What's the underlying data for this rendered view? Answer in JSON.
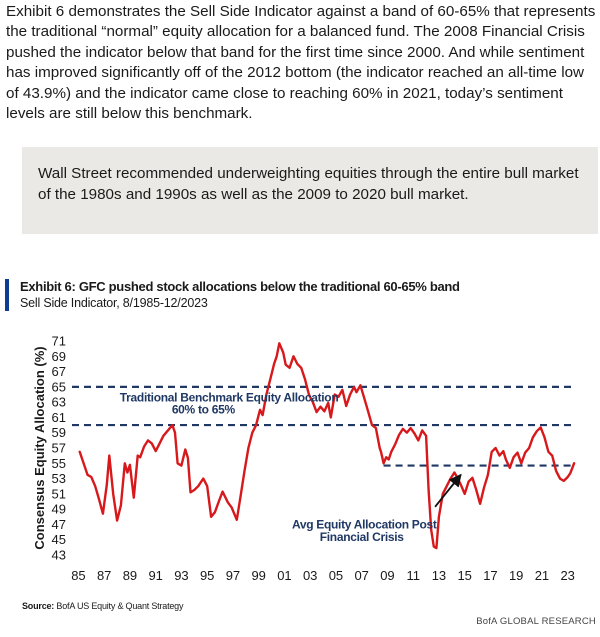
{
  "intro_text": "Exhibit 6 demonstrates the Sell Side Indicator against a band of 60-65% that represents the traditional “normal” equity allocation for a balanced fund. The 2008 Financial Crisis pushed the indicator below that band for the first time since 2000. And while sentiment has improved significantly off of the 2012 bottom (the indicator reached an all-time low of 43.9%) and the indicator came close to reaching 60% in 2021, today’s sentiment levels are still below this benchmark.",
  "callout_text": "Wall Street recommended underweighting equities through the entire bull market of the 1980s and 1990s as well as the 2009 to 2020 bull market.",
  "exhibit": {
    "title": "Exhibit 6: GFC pushed stock allocations below the traditional 60-65% band",
    "subtitle": "Sell Side Indicator, 8/1985-12/2023",
    "source_label": "Source:",
    "source_text": "BofA US Equity & Quant Strategy",
    "brand": "BofA GLOBAL RESEARCH"
  },
  "colors": {
    "line": "#d7191c",
    "band": "#1f3864",
    "accent": "#0b3d91"
  },
  "chart_data": {
    "type": "line",
    "ylabel": "Consensus Equity Allocation (%)",
    "ylim": [
      43,
      71
    ],
    "yticks": [
      43,
      45,
      47,
      49,
      51,
      53,
      55,
      57,
      59,
      61,
      63,
      65,
      67,
      69,
      71
    ],
    "xlim": [
      1985.0,
      2024.3
    ],
    "xtick_labels": [
      "85",
      "87",
      "89",
      "91",
      "93",
      "95",
      "97",
      "99",
      "01",
      "03",
      "05",
      "07",
      "09",
      "11",
      "13",
      "15",
      "17",
      "19",
      "21",
      "23"
    ],
    "reference_lines": [
      {
        "value": 65,
        "x_start": 1985.0,
        "x_end": 2024.0
      },
      {
        "value": 60,
        "x_start": 1985.0,
        "x_end": 2024.0
      },
      {
        "value": 54.7,
        "x_start": 2009.2,
        "x_end": 2024.0
      }
    ],
    "annotations": [
      {
        "text": "Traditional Benchmark Equity Allocation",
        "x": 1997.2,
        "y": 63.1
      },
      {
        "text": "60% to 65%",
        "x": 1995.2,
        "y": 61.5
      },
      {
        "text": "Avg Equity Allocation Post",
        "x": 2007.7,
        "y": 46.5
      },
      {
        "text": "Financial Crisis",
        "x": 2007.5,
        "y": 44.8
      }
    ],
    "arrow": {
      "from": [
        2013.2,
        49.3
      ],
      "to": [
        2015.2,
        53.5
      ]
    },
    "series": [
      {
        "values": [
          [
            1985.6,
            56.5
          ],
          [
            1985.9,
            55.0
          ],
          [
            1986.2,
            53.5
          ],
          [
            1986.5,
            53.2
          ],
          [
            1986.8,
            52.0
          ],
          [
            1987.1,
            50.3
          ],
          [
            1987.4,
            48.4
          ],
          [
            1987.7,
            52.2
          ],
          [
            1987.9,
            56.0
          ],
          [
            1988.2,
            51.0
          ],
          [
            1988.5,
            47.5
          ],
          [
            1988.8,
            49.5
          ],
          [
            1989.1,
            55.0
          ],
          [
            1989.3,
            53.8
          ],
          [
            1989.5,
            54.8
          ],
          [
            1989.8,
            50.5
          ],
          [
            1990.1,
            56.0
          ],
          [
            1990.3,
            55.8
          ],
          [
            1990.6,
            57.2
          ],
          [
            1990.9,
            58.0
          ],
          [
            1991.2,
            57.6
          ],
          [
            1991.5,
            56.6
          ],
          [
            1991.8,
            57.6
          ],
          [
            1992.1,
            58.6
          ],
          [
            1992.4,
            59.2
          ],
          [
            1992.8,
            60.0
          ],
          [
            1993.0,
            59.0
          ],
          [
            1993.2,
            55.0
          ],
          [
            1993.5,
            54.7
          ],
          [
            1993.8,
            56.8
          ],
          [
            1994.0,
            55.7
          ],
          [
            1994.2,
            51.2
          ],
          [
            1994.5,
            51.5
          ],
          [
            1994.8,
            52.0
          ],
          [
            1995.2,
            53.0
          ],
          [
            1995.5,
            52.0
          ],
          [
            1995.8,
            48.0
          ],
          [
            1996.1,
            48.6
          ],
          [
            1996.4,
            50.0
          ],
          [
            1996.7,
            51.3
          ],
          [
            1997.1,
            49.9
          ],
          [
            1997.4,
            49.2
          ],
          [
            1997.8,
            47.6
          ],
          [
            1998.1,
            50.8
          ],
          [
            1998.4,
            54.0
          ],
          [
            1998.7,
            57.0
          ],
          [
            1999.0,
            59.0
          ],
          [
            1999.3,
            60.0
          ],
          [
            1999.6,
            62.0
          ],
          [
            1999.8,
            61.3
          ],
          [
            2000.1,
            64.0
          ],
          [
            2000.4,
            66.0
          ],
          [
            2000.7,
            68.0
          ],
          [
            2000.9,
            69.0
          ],
          [
            2001.1,
            70.7
          ],
          [
            2001.4,
            69.5
          ],
          [
            2001.6,
            67.9
          ],
          [
            2001.9,
            67.5
          ],
          [
            2002.2,
            69.0
          ],
          [
            2002.5,
            68.0
          ],
          [
            2002.8,
            67.5
          ],
          [
            2003.1,
            66.0
          ],
          [
            2003.4,
            64.0
          ],
          [
            2003.7,
            63.0
          ],
          [
            2004.0,
            61.7
          ],
          [
            2004.3,
            62.4
          ],
          [
            2004.6,
            61.8
          ],
          [
            2004.9,
            62.9
          ],
          [
            2005.1,
            61.0
          ],
          [
            2005.4,
            64.0
          ],
          [
            2005.7,
            63.7
          ],
          [
            2006.0,
            64.6
          ],
          [
            2006.3,
            62.5
          ],
          [
            2006.6,
            64.0
          ],
          [
            2006.9,
            65.0
          ],
          [
            2007.1,
            64.3
          ],
          [
            2007.4,
            65.2
          ],
          [
            2007.7,
            63.5
          ],
          [
            2008.0,
            61.8
          ],
          [
            2008.3,
            60.0
          ],
          [
            2008.6,
            59.6
          ],
          [
            2008.9,
            57.0
          ],
          [
            2009.0,
            56.5
          ],
          [
            2009.2,
            55.0
          ],
          [
            2009.4,
            55.8
          ],
          [
            2009.6,
            55.5
          ],
          [
            2009.8,
            56.5
          ],
          [
            2010.1,
            57.5
          ],
          [
            2010.4,
            58.7
          ],
          [
            2010.7,
            59.5
          ],
          [
            2011.0,
            59.0
          ],
          [
            2011.3,
            59.6
          ],
          [
            2011.6,
            58.9
          ],
          [
            2011.9,
            58.0
          ],
          [
            2012.2,
            59.3
          ],
          [
            2012.5,
            58.6
          ],
          [
            2012.7,
            51.5
          ],
          [
            2012.9,
            46.3
          ],
          [
            2013.1,
            44.1
          ],
          [
            2013.3,
            43.9
          ],
          [
            2013.5,
            48.0
          ],
          [
            2013.8,
            51.0
          ],
          [
            2014.1,
            52.0
          ],
          [
            2014.4,
            53.0
          ],
          [
            2014.7,
            53.8
          ],
          [
            2014.9,
            53.2
          ],
          [
            2015.2,
            52.2
          ],
          [
            2015.5,
            51.0
          ],
          [
            2015.8,
            52.6
          ],
          [
            2016.1,
            53.1
          ],
          [
            2016.4,
            51.5
          ],
          [
            2016.7,
            49.7
          ],
          [
            2017.0,
            51.8
          ],
          [
            2017.3,
            53.5
          ],
          [
            2017.6,
            56.5
          ],
          [
            2017.9,
            57.0
          ],
          [
            2018.2,
            56.0
          ],
          [
            2018.5,
            56.6
          ],
          [
            2018.7,
            55.5
          ],
          [
            2019.0,
            54.4
          ],
          [
            2019.3,
            55.8
          ],
          [
            2019.6,
            56.4
          ],
          [
            2019.9,
            55.0
          ],
          [
            2020.2,
            56.4
          ],
          [
            2020.5,
            57.0
          ],
          [
            2020.8,
            58.4
          ],
          [
            2021.1,
            59.2
          ],
          [
            2021.4,
            59.7
          ],
          [
            2021.7,
            58.4
          ],
          [
            2022.0,
            56.5
          ],
          [
            2022.3,
            56.0
          ],
          [
            2022.6,
            54.0
          ],
          [
            2022.9,
            53.0
          ],
          [
            2023.2,
            52.7
          ],
          [
            2023.5,
            53.2
          ],
          [
            2023.7,
            53.7
          ],
          [
            2024.0,
            55.0
          ]
        ]
      }
    ]
  }
}
